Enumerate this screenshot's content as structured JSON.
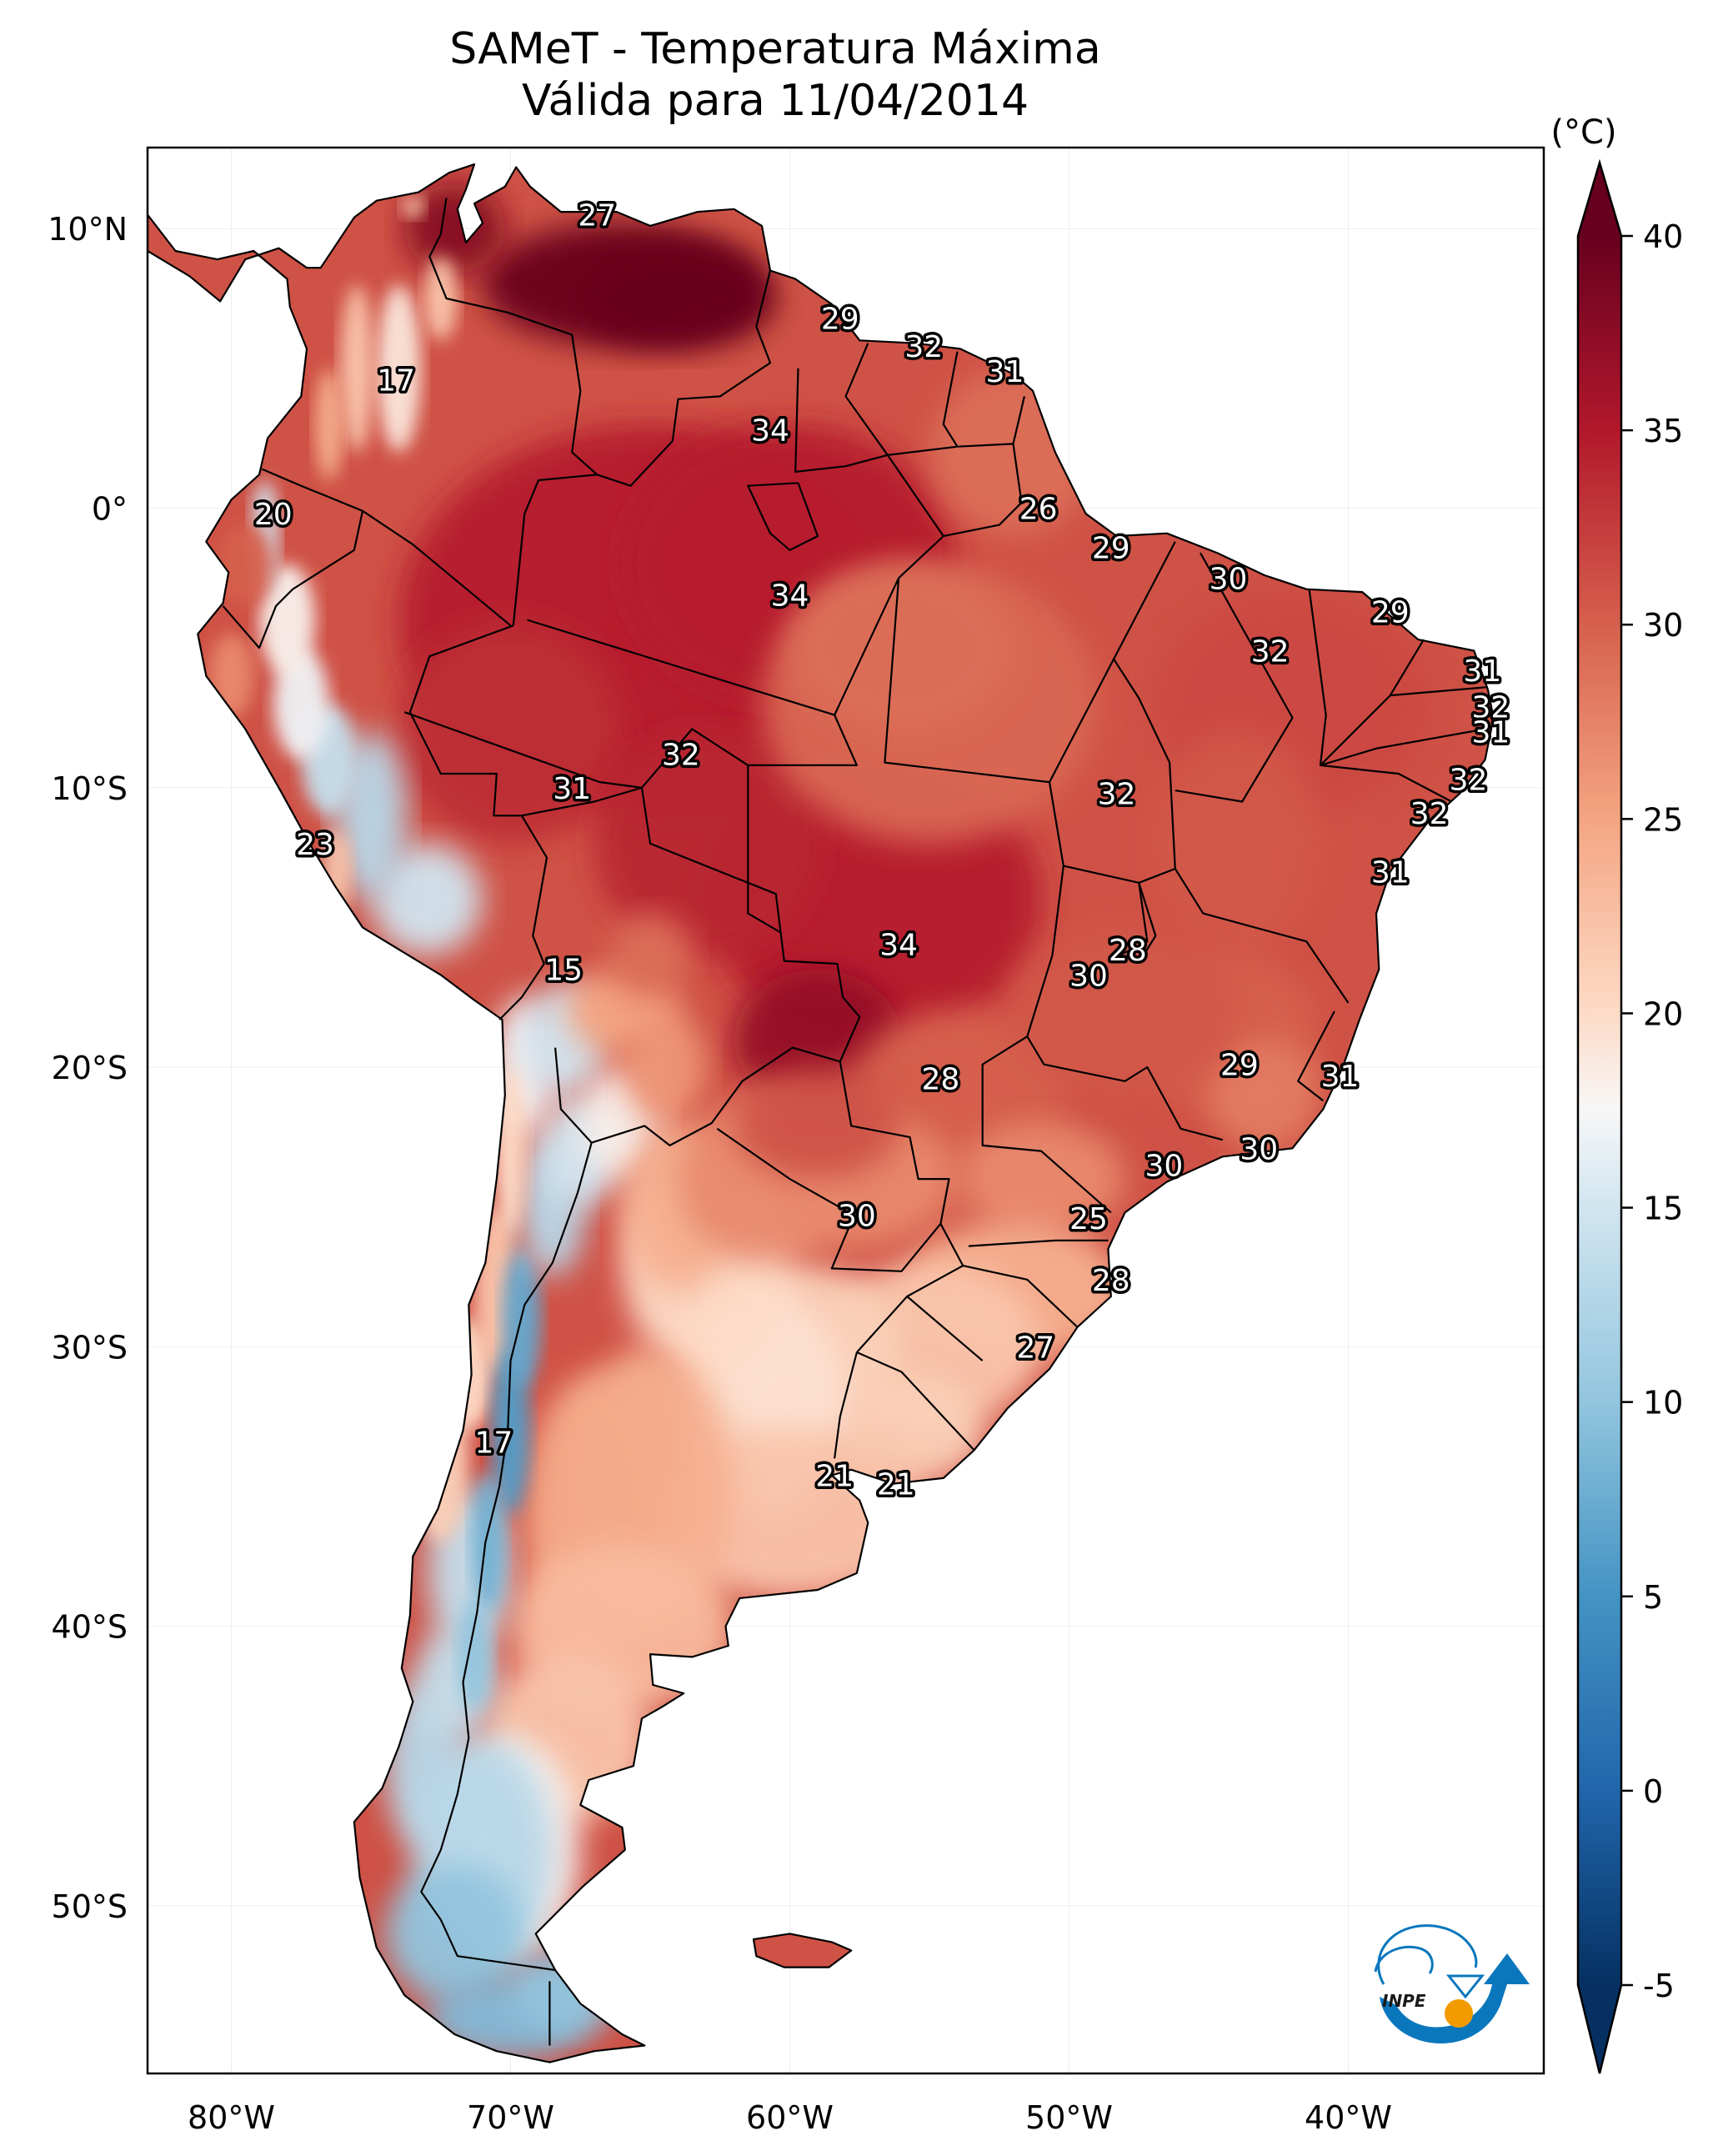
{
  "title": {
    "line1": "SAMeT - Temperatura Máxima",
    "line2": "Válida para 11/04/2014"
  },
  "chart_data": {
    "type": "heatmap",
    "subtype": "geographic-filled-contour",
    "title": "SAMeT - Temperatura Máxima",
    "subtitle": "Válida para 11/04/2014",
    "variable": "Maximum temperature",
    "units": "(°C)",
    "extent": {
      "lon": [
        -83,
        -33
      ],
      "lat": [
        -56,
        12.9
      ]
    },
    "x_ticks": [
      {
        "lon": -80,
        "label": "80°W"
      },
      {
        "lon": -70,
        "label": "70°W"
      },
      {
        "lon": -60,
        "label": "60°W"
      },
      {
        "lon": -50,
        "label": "50°W"
      },
      {
        "lon": -40,
        "label": "40°W"
      }
    ],
    "y_ticks": [
      {
        "lat": 10,
        "label": "10°N"
      },
      {
        "lat": 0,
        "label": "0°"
      },
      {
        "lat": -10,
        "label": "10°S"
      },
      {
        "lat": -20,
        "label": "20°S"
      },
      {
        "lat": -30,
        "label": "30°S"
      },
      {
        "lat": -40,
        "label": "40°S"
      },
      {
        "lat": -50,
        "label": "50°S"
      }
    ],
    "colorbar": {
      "label": "(°C)",
      "min": -5,
      "max": 40,
      "extend": "both",
      "colormap": "RdBu_r",
      "ticks": [
        -5,
        0,
        5,
        10,
        15,
        20,
        25,
        30,
        35,
        40
      ],
      "stops": [
        {
          "v": -5,
          "c": "#053061"
        },
        {
          "v": 0,
          "c": "#2166ac"
        },
        {
          "v": 5,
          "c": "#4393c3"
        },
        {
          "v": 10,
          "c": "#92c5de"
        },
        {
          "v": 15,
          "c": "#d1e5f0"
        },
        {
          "v": 17.5,
          "c": "#f7f7f7"
        },
        {
          "v": 20,
          "c": "#fddbc7"
        },
        {
          "v": 25,
          "c": "#f4a582"
        },
        {
          "v": 30,
          "c": "#d6604d"
        },
        {
          "v": 35,
          "c": "#b2182b"
        },
        {
          "v": 40,
          "c": "#67001f"
        }
      ]
    },
    "station_labels": [
      {
        "lon": -66.9,
        "lat": 10.5,
        "value": 27
      },
      {
        "lon": -58.2,
        "lat": 6.8,
        "value": 29
      },
      {
        "lon": -55.2,
        "lat": 5.8,
        "value": 32
      },
      {
        "lon": -52.3,
        "lat": 4.9,
        "value": 31
      },
      {
        "lon": -74.1,
        "lat": 4.6,
        "value": 17
      },
      {
        "lon": -60.7,
        "lat": 2.8,
        "value": 34
      },
      {
        "lon": -78.5,
        "lat": -0.2,
        "value": 20
      },
      {
        "lon": -51.1,
        "lat": 0.0,
        "value": 26
      },
      {
        "lon": -48.5,
        "lat": -1.4,
        "value": 29
      },
      {
        "lon": -44.3,
        "lat": -2.5,
        "value": 30
      },
      {
        "lon": -60.0,
        "lat": -3.1,
        "value": 34
      },
      {
        "lon": -38.5,
        "lat": -3.7,
        "value": 29
      },
      {
        "lon": -42.8,
        "lat": -5.1,
        "value": 32
      },
      {
        "lon": -35.2,
        "lat": -5.8,
        "value": 31
      },
      {
        "lon": -34.9,
        "lat": -7.1,
        "value": 32
      },
      {
        "lon": -34.9,
        "lat": -8.0,
        "value": 31
      },
      {
        "lon": -63.9,
        "lat": -8.8,
        "value": 32
      },
      {
        "lon": -35.7,
        "lat": -9.7,
        "value": 32
      },
      {
        "lon": -67.8,
        "lat": -10.0,
        "value": 31
      },
      {
        "lon": -48.3,
        "lat": -10.2,
        "value": 32
      },
      {
        "lon": -37.1,
        "lat": -10.9,
        "value": 32
      },
      {
        "lon": -77.0,
        "lat": -12.0,
        "value": 23
      },
      {
        "lon": -38.5,
        "lat": -13.0,
        "value": 31
      },
      {
        "lon": -56.1,
        "lat": -15.6,
        "value": 34
      },
      {
        "lon": -47.9,
        "lat": -15.8,
        "value": 28
      },
      {
        "lon": -49.3,
        "lat": -16.7,
        "value": 30
      },
      {
        "lon": -68.1,
        "lat": -16.5,
        "value": 15
      },
      {
        "lon": -43.9,
        "lat": -19.9,
        "value": 29
      },
      {
        "lon": -40.3,
        "lat": -20.3,
        "value": 31
      },
      {
        "lon": -54.6,
        "lat": -20.4,
        "value": 28
      },
      {
        "lon": -43.2,
        "lat": -22.9,
        "value": 30
      },
      {
        "lon": -46.6,
        "lat": -23.5,
        "value": 30
      },
      {
        "lon": -57.6,
        "lat": -25.3,
        "value": 30
      },
      {
        "lon": -49.3,
        "lat": -25.4,
        "value": 25
      },
      {
        "lon": -48.5,
        "lat": -27.6,
        "value": 28
      },
      {
        "lon": -51.2,
        "lat": -30.0,
        "value": 27
      },
      {
        "lon": -70.6,
        "lat": -33.4,
        "value": 17
      },
      {
        "lon": -58.4,
        "lat": -34.6,
        "value": 21
      },
      {
        "lon": -56.2,
        "lat": -34.9,
        "value": 21
      }
    ]
  },
  "logo": {
    "text": "INPE",
    "colors": {
      "blue": "#0a77bd",
      "orange": "#f39a00"
    }
  }
}
